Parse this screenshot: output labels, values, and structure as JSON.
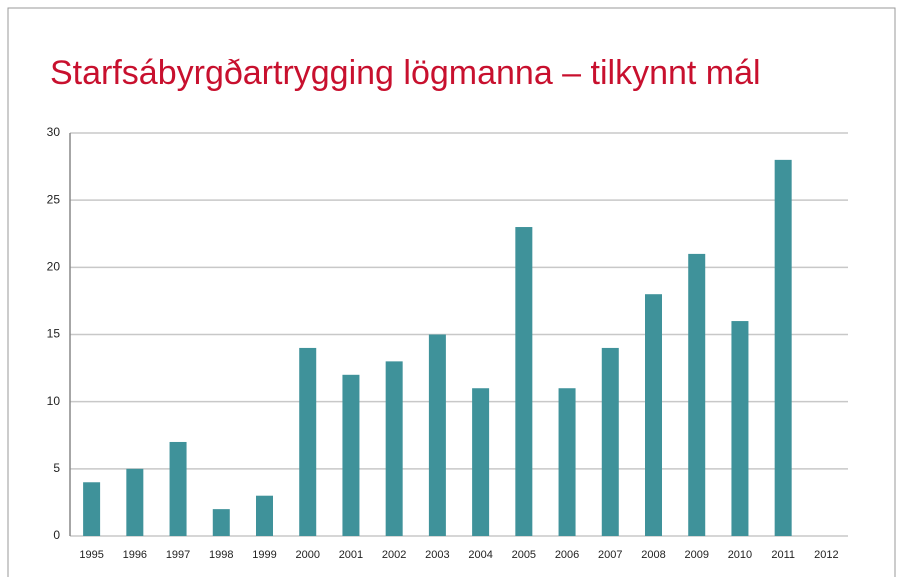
{
  "chart_data": {
    "type": "bar",
    "title": "Starfsábyrgðartrygging lögmanna – tilkynnt mál",
    "categories": [
      "1995",
      "1996",
      "1997",
      "1998",
      "1999",
      "2000",
      "2001",
      "2002",
      "2003",
      "2004",
      "2005",
      "2006",
      "2007",
      "2008",
      "2009",
      "2010",
      "2011",
      "2012"
    ],
    "values": [
      4,
      5,
      7,
      2,
      3,
      14,
      12,
      13,
      15,
      11,
      23,
      11,
      14,
      18,
      21,
      16,
      28,
      null
    ],
    "color": "#3f929a",
    "ylim": [
      0,
      30
    ],
    "yticks": [
      0,
      5,
      10,
      15,
      20,
      25,
      30
    ],
    "grid": true
  }
}
